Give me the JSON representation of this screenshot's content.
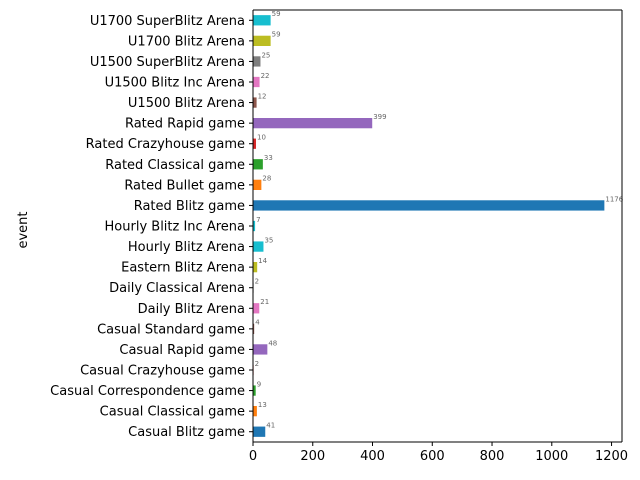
{
  "chart_data": {
    "type": "bar",
    "orientation": "horizontal",
    "ylabel": "event",
    "xlabel": "",
    "xlim": [
      0,
      1235
    ],
    "xticks": [
      0,
      200,
      400,
      600,
      800,
      1000,
      1200
    ],
    "grid": false,
    "legend": "none",
    "categories": [
      "U1700 SuperBlitz Arena",
      "U1700 Blitz Arena",
      "U1500 SuperBlitz Arena",
      "U1500 Blitz Inc Arena",
      "U1500 Blitz Arena",
      "Rated Rapid game",
      "Rated Crazyhouse game",
      "Rated Classical game",
      "Rated Bullet game",
      "Rated Blitz game",
      "Hourly Blitz Inc Arena",
      "Hourly Blitz Arena",
      "Eastern Blitz Arena",
      "Daily Classical Arena",
      "Daily Blitz Arena",
      "Casual Standard game",
      "Casual Rapid game",
      "Casual Crazyhouse game",
      "Casual Correspondence game",
      "Casual Classical game",
      "Casual Blitz game"
    ],
    "values": [
      59,
      59,
      25,
      22,
      12,
      399,
      10,
      33,
      28,
      1176,
      7,
      35,
      14,
      2,
      21,
      4,
      48,
      2,
      9,
      13,
      41
    ],
    "colors": [
      "#17becf",
      "#bcbd22",
      "#7f7f7f",
      "#e377c2",
      "#8c564b",
      "#9467bd",
      "#d62728",
      "#2ca02c",
      "#ff7f0e",
      "#1f77b4",
      "#17becf",
      "#17becf",
      "#bcbd22",
      "#7f7f7f",
      "#e377c2",
      "#8c564b",
      "#9467bd",
      "#d62728",
      "#2ca02c",
      "#ff7f0e",
      "#1f77b4"
    ],
    "value_label_color": "#666666"
  }
}
